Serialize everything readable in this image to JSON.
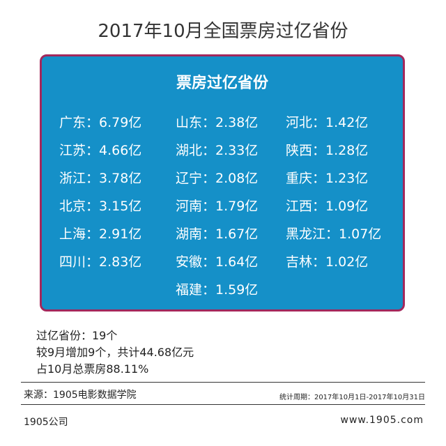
{
  "header": {
    "title": "2017年10月全国票房过亿省份"
  },
  "panel": {
    "title": "票房过亿省份",
    "columns": [
      [
        "广东：6.79亿",
        "江苏：4.66亿",
        "浙江：3.78亿",
        "北京：3.15亿",
        "上海：2.91亿",
        "四川：2.83亿"
      ],
      [
        "山东：2.38亿",
        "湖北：2.33亿",
        "辽宁：2.08亿",
        "河南：1.79亿",
        "湖南：1.67亿",
        "安徽：1.64亿",
        "福建：1.59亿"
      ],
      [
        "河北：1.42亿",
        "陕西：1.28亿",
        "重庆：1.23亿",
        "江西：1.09亿",
        "黑龙江：1.07亿",
        "吉林：1.02亿"
      ]
    ]
  },
  "summary": [
    "过亿省份：19个",
    "较9月增加9个，共计44.68亿元",
    "占10月总票房88.11%"
  ],
  "source": "来源：1905电影数据学院",
  "period": "统计周期：2017年10月1日-2017年10月31日",
  "footer": {
    "left": "1905公司",
    "right": "www.1905.com"
  }
}
